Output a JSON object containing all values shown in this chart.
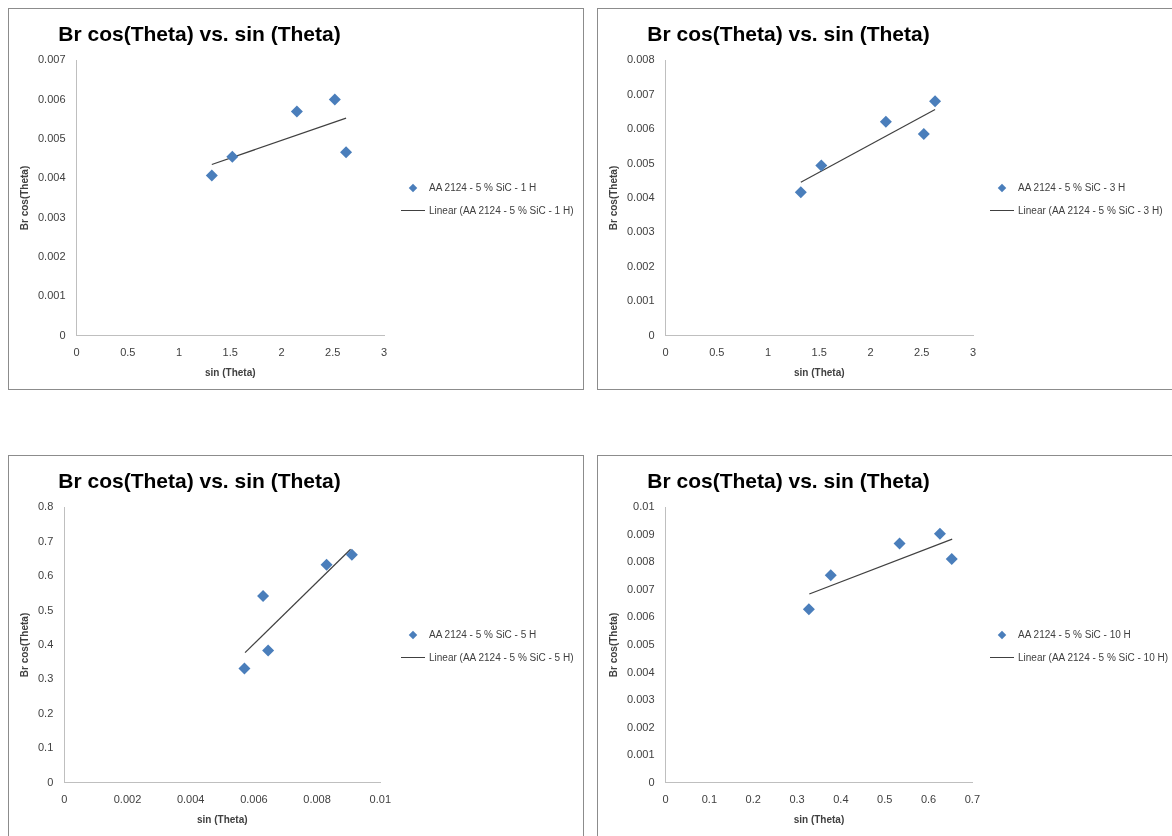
{
  "chart_data": [
    {
      "type": "scatter",
      "title": "Br cos(Theta) vs. sin (Theta)",
      "xlabel": "sin (Theta)",
      "ylabel": "Br cos(Theta)",
      "xlim": [
        0,
        3
      ],
      "xticks": [
        0,
        0.5,
        1,
        1.5,
        2,
        2.5,
        3
      ],
      "ylim": [
        0,
        0.007
      ],
      "yticks": [
        0,
        0.001,
        0.002,
        0.003,
        0.004,
        0.005,
        0.006,
        0.007
      ],
      "legend": "right",
      "marker": "diamond",
      "series": [
        {
          "name": "AA 2124 - 5 % SiC - 1 H",
          "color": "#4a7ebb",
          "x": [
            1.32,
            1.52,
            2.15,
            2.52,
            2.63
          ],
          "values": [
            0.00407,
            0.00455,
            0.0057,
            0.006,
            0.00466
          ]
        },
        {
          "name": "Linear (AA 2124 - 5 % SiC - 1 H)",
          "color": "#404040",
          "type": "line",
          "marker": "none",
          "x": [
            1.32,
            2.63
          ],
          "values": [
            0.00435,
            0.00553
          ]
        }
      ]
    },
    {
      "type": "scatter",
      "title": "Br cos(Theta) vs. sin (Theta)",
      "xlabel": "sin (Theta)",
      "ylabel": "Br cos(Theta)",
      "xlim": [
        0,
        3
      ],
      "xticks": [
        0,
        0.5,
        1,
        1.5,
        2,
        2.5,
        3
      ],
      "ylim": [
        0,
        0.008
      ],
      "yticks": [
        0,
        0.001,
        0.002,
        0.003,
        0.004,
        0.005,
        0.006,
        0.007,
        0.008
      ],
      "legend": "right",
      "marker": "diamond",
      "series": [
        {
          "name": "AA 2124 - 5 % SiC - 3 H",
          "color": "#4a7ebb",
          "x": [
            1.32,
            1.52,
            2.15,
            2.52,
            2.63
          ],
          "values": [
            0.00417,
            0.00494,
            0.00621,
            0.00586,
            0.00681
          ]
        },
        {
          "name": "Linear (AA 2124 - 5 % SiC - 3 H)",
          "color": "#404040",
          "type": "line",
          "marker": "none",
          "x": [
            1.32,
            2.63
          ],
          "values": [
            0.00446,
            0.00657
          ]
        }
      ]
    },
    {
      "type": "scatter",
      "title": "Br cos(Theta) vs. sin (Theta)",
      "xlabel": "sin (Theta)",
      "ylabel": "Br cos(Theta)",
      "xlim": [
        0,
        0.01
      ],
      "xticks": [
        0,
        0.002,
        0.004,
        0.006,
        0.008,
        0.01
      ],
      "ylim": [
        0,
        0.8
      ],
      "yticks": [
        0,
        0.1,
        0.2,
        0.3,
        0.4,
        0.5,
        0.6,
        0.7,
        0.8
      ],
      "legend": "right",
      "marker": "diamond",
      "series": [
        {
          "name": "AA 2124 - 5 % SiC - 5 H",
          "color": "#4a7ebb",
          "x": [
            0.0057,
            0.00629,
            0.00645,
            0.0083,
            0.0091
          ],
          "values": [
            0.332,
            0.542,
            0.384,
            0.633,
            0.662
          ]
        },
        {
          "name": "Linear (AA 2124 - 5 % SiC - 5 H)",
          "color": "#404040",
          "type": "line",
          "marker": "none",
          "x": [
            0.00572,
            0.00906
          ],
          "values": [
            0.378,
            0.678
          ]
        }
      ]
    },
    {
      "type": "scatter",
      "title": "Br cos(Theta) vs. sin (Theta)",
      "xlabel": "sin (Theta)",
      "ylabel": "Br cos(Theta)",
      "xlim": [
        0,
        0.7
      ],
      "xticks": [
        0,
        0.1,
        0.2,
        0.3,
        0.4,
        0.5,
        0.6,
        0.7
      ],
      "ylim": [
        0,
        0.01
      ],
      "yticks": [
        0,
        0.001,
        0.002,
        0.003,
        0.004,
        0.005,
        0.006,
        0.007,
        0.008,
        0.009,
        0.01
      ],
      "legend": "right",
      "marker": "diamond",
      "series": [
        {
          "name": "AA 2124 - 5 % SiC - 10 H",
          "color": "#4a7ebb",
          "x": [
            0.327,
            0.377,
            0.534,
            0.626,
            0.653
          ],
          "values": [
            0.0063,
            0.00753,
            0.00868,
            0.00904,
            0.00812
          ]
        },
        {
          "name": "Linear (AA 2124 - 5 % SiC - 10 H)",
          "color": "#404040",
          "type": "line",
          "marker": "none",
          "x": [
            0.328,
            0.654
          ],
          "values": [
            0.00685,
            0.00884
          ]
        }
      ]
    }
  ]
}
